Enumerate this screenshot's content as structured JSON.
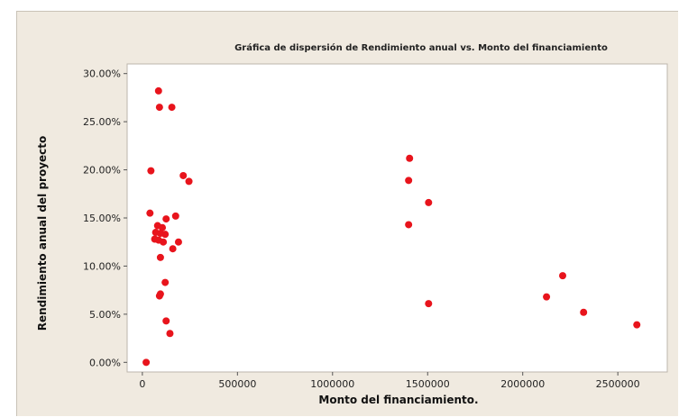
{
  "chart_data": {
    "type": "scatter",
    "title": "Gráfica de dispersión de Rendimiento anual vs. Monto del financiamiento",
    "xlabel": "Monto del financiamiento.",
    "ylabel": "Rendimiento anual del proyecto",
    "xlim": [
      -80000,
      2760000
    ],
    "ylim": [
      -0.01,
      0.31
    ],
    "x_ticks": [
      0,
      500000,
      1000000,
      1500000,
      2000000,
      2500000
    ],
    "x_tick_labels": [
      "0",
      "500000",
      "1000000",
      "1500000",
      "2000000",
      "2500000"
    ],
    "y_ticks": [
      0,
      0.05,
      0.1,
      0.15,
      0.2,
      0.25,
      0.3
    ],
    "y_tick_labels": [
      "0.00%",
      "5.00%",
      "10.00%",
      "15.00%",
      "20.00%",
      "25.00%",
      "30.00%"
    ],
    "grid": false,
    "marker_color": "#e8141c",
    "points": [
      {
        "x": 85000,
        "y": 0.282
      },
      {
        "x": 90000,
        "y": 0.265
      },
      {
        "x": 155000,
        "y": 0.265
      },
      {
        "x": 45000,
        "y": 0.199
      },
      {
        "x": 215000,
        "y": 0.194
      },
      {
        "x": 245000,
        "y": 0.188
      },
      {
        "x": 40000,
        "y": 0.155
      },
      {
        "x": 125000,
        "y": 0.149
      },
      {
        "x": 175000,
        "y": 0.152
      },
      {
        "x": 80000,
        "y": 0.142
      },
      {
        "x": 105000,
        "y": 0.14
      },
      {
        "x": 70000,
        "y": 0.135
      },
      {
        "x": 95000,
        "y": 0.134
      },
      {
        "x": 120000,
        "y": 0.133
      },
      {
        "x": 65000,
        "y": 0.128
      },
      {
        "x": 85000,
        "y": 0.127
      },
      {
        "x": 110000,
        "y": 0.125
      },
      {
        "x": 190000,
        "y": 0.125
      },
      {
        "x": 160000,
        "y": 0.118
      },
      {
        "x": 95000,
        "y": 0.109
      },
      {
        "x": 120000,
        "y": 0.083
      },
      {
        "x": 95000,
        "y": 0.071
      },
      {
        "x": 90000,
        "y": 0.069
      },
      {
        "x": 125000,
        "y": 0.043
      },
      {
        "x": 145000,
        "y": 0.03
      },
      {
        "x": 20000,
        "y": 0.0
      },
      {
        "x": 1405000,
        "y": 0.212
      },
      {
        "x": 1400000,
        "y": 0.189
      },
      {
        "x": 1505000,
        "y": 0.166
      },
      {
        "x": 1400000,
        "y": 0.143
      },
      {
        "x": 1505000,
        "y": 0.061
      },
      {
        "x": 2210000,
        "y": 0.09
      },
      {
        "x": 2125000,
        "y": 0.068
      },
      {
        "x": 2320000,
        "y": 0.052
      },
      {
        "x": 2600000,
        "y": 0.039
      }
    ]
  }
}
